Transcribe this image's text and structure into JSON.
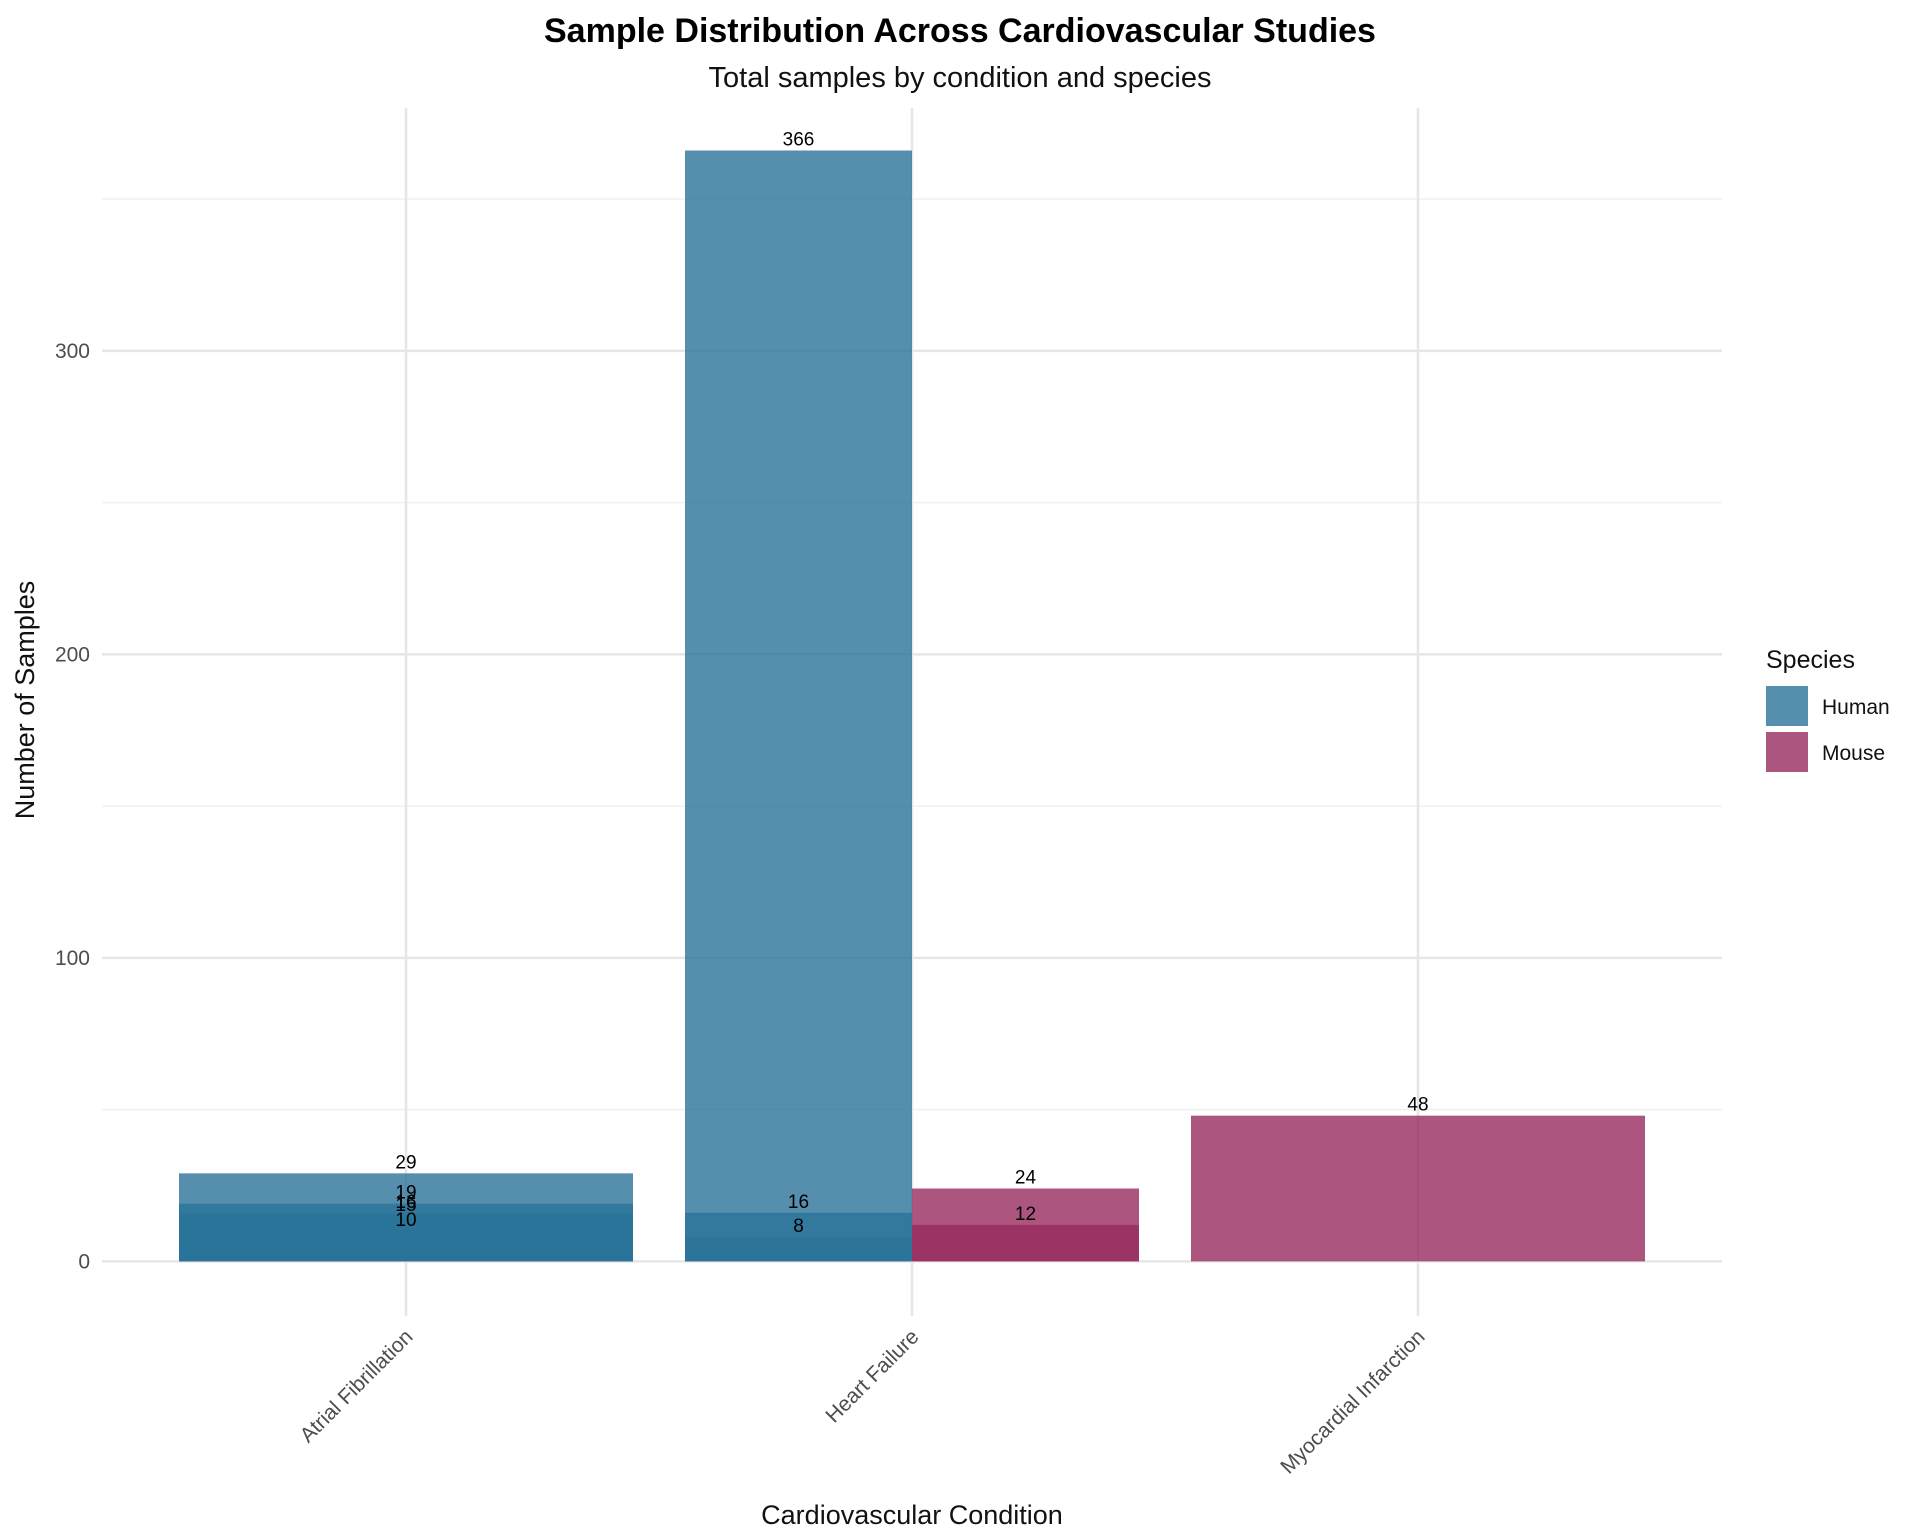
{
  "colors": {
    "human": "#2B7399",
    "mouse": "#972A5E",
    "grid_major": "#e6e6e6",
    "grid_minor": "#f0f0f0"
  },
  "chart_data": {
    "type": "bar",
    "title": "Sample Distribution Across Cardiovascular Studies",
    "subtitle": "Total samples by condition and species",
    "xlabel": "Cardiovascular Condition",
    "ylabel": "Number of Samples",
    "ylim": [
      -18,
      380
    ],
    "yticks": [
      0,
      100,
      200,
      300
    ],
    "y_minor_ticks": [
      50,
      150,
      250,
      350
    ],
    "categories": [
      "Atrial Fibrillation",
      "Heart Failure",
      "Myocardial Infarction"
    ],
    "grid": true,
    "legend": {
      "title": "Species",
      "position": "right",
      "entries": [
        {
          "label": "Human",
          "color": "#2B7399"
        },
        {
          "label": "Mouse",
          "color": "#972A5E"
        }
      ]
    },
    "bars": [
      {
        "category": "Atrial Fibrillation",
        "species": "Human",
        "value": 29,
        "label": "29"
      },
      {
        "category": "Atrial Fibrillation",
        "species": "Human",
        "value": 19,
        "label": "19"
      },
      {
        "category": "Atrial Fibrillation",
        "species": "Human",
        "value": 16,
        "label": "16"
      },
      {
        "category": "Atrial Fibrillation",
        "species": "Human",
        "value": 15,
        "label": "15"
      },
      {
        "category": "Atrial Fibrillation",
        "species": "Human",
        "value": 10,
        "label": "10"
      },
      {
        "category": "Heart Failure",
        "species": "Human",
        "value": 366,
        "label": "366"
      },
      {
        "category": "Heart Failure",
        "species": "Human",
        "value": 16,
        "label": "16"
      },
      {
        "category": "Heart Failure",
        "species": "Human",
        "value": 8,
        "label": "8"
      },
      {
        "category": "Heart Failure",
        "species": "Mouse",
        "value": 24,
        "label": "24"
      },
      {
        "category": "Heart Failure",
        "species": "Mouse",
        "value": 12,
        "label": "12"
      },
      {
        "category": "Myocardial Infarction",
        "species": "Mouse",
        "value": 48,
        "label": "48"
      }
    ]
  }
}
